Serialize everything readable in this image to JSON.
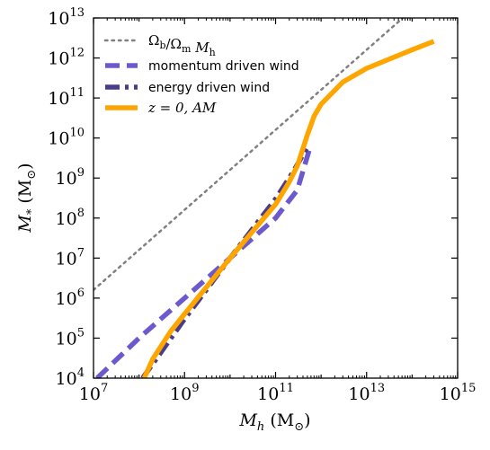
{
  "chart_data": {
    "type": "line",
    "xscale": "log",
    "yscale": "log",
    "xlim": [
      10000000.0,
      1000000000000000.0
    ],
    "ylim": [
      10000.0,
      10000000000000.0
    ],
    "xlabel": "M_h (M_⊙)",
    "ylabel": "M_* (M_⊙)",
    "x_tick_labels": [
      "10^7",
      "10^9",
      "10^11",
      "10^13",
      "10^15"
    ],
    "y_tick_labels": [
      "10^4",
      "10^5",
      "10^6",
      "10^7",
      "10^8",
      "10^9",
      "10^10",
      "10^11",
      "10^12",
      "10^13"
    ],
    "legend_position": "top-left",
    "series": [
      {
        "name": "Ω_b/Ω_m M_h",
        "color": "#808080",
        "style": "dotted",
        "points": [
          [
            10000000.0,
            1600000.0
          ],
          [
            1000000000000000.0,
            160000000000000.0
          ]
        ]
      },
      {
        "name": "momentum driven wind",
        "color": "#6a5acd",
        "style": "dashed",
        "points": [
          [
            12000000.0,
            10000.0
          ],
          [
            100000000.0,
            100000.0
          ],
          [
            1000000000.0,
            1000000.0
          ],
          [
            10000000000.0,
            10000000.0
          ],
          [
            100000000000.0,
            100000000.0
          ],
          [
            300000000000.0,
            500000000.0
          ],
          [
            600000000000.0,
            7000000000.0
          ]
        ]
      },
      {
        "name": "energy driven wind",
        "color": "#483d8b",
        "style": "dashdot",
        "points": [
          [
            120000000.0,
            10000.0
          ],
          [
            1000000000.0,
            300000.0
          ],
          [
            10000000000.0,
            10000000.0
          ],
          [
            100000000000.0,
            300000000.0
          ],
          [
            250000000000.0,
            1500000000.0
          ],
          [
            500000000000.0,
            6000000000.0
          ]
        ]
      },
      {
        "name": "z = 0, AM",
        "color": "#ffa500",
        "style": "solid",
        "points": [
          [
            130000000.0,
            10000.0
          ],
          [
            200000000.0,
            30000.0
          ],
          [
            500000000.0,
            150000.0
          ],
          [
            1000000000.0,
            400000.0
          ],
          [
            10000000000.0,
            10000000.0
          ],
          [
            100000000000.0,
            220000000.0
          ],
          [
            200000000000.0,
            800000000.0
          ],
          [
            300000000000.0,
            2000000000.0
          ],
          [
            500000000000.0,
            12000000000.0
          ],
          [
            700000000000.0,
            35000000000.0
          ],
          [
            1000000000000.0,
            70000000000.0
          ],
          [
            3000000000000.0,
            250000000000.0
          ],
          [
            10000000000000.0,
            550000000000.0
          ],
          [
            100000000000000.0,
            1600000000000.0
          ],
          [
            300000000000000.0,
            2600000000000.0
          ]
        ]
      }
    ]
  }
}
